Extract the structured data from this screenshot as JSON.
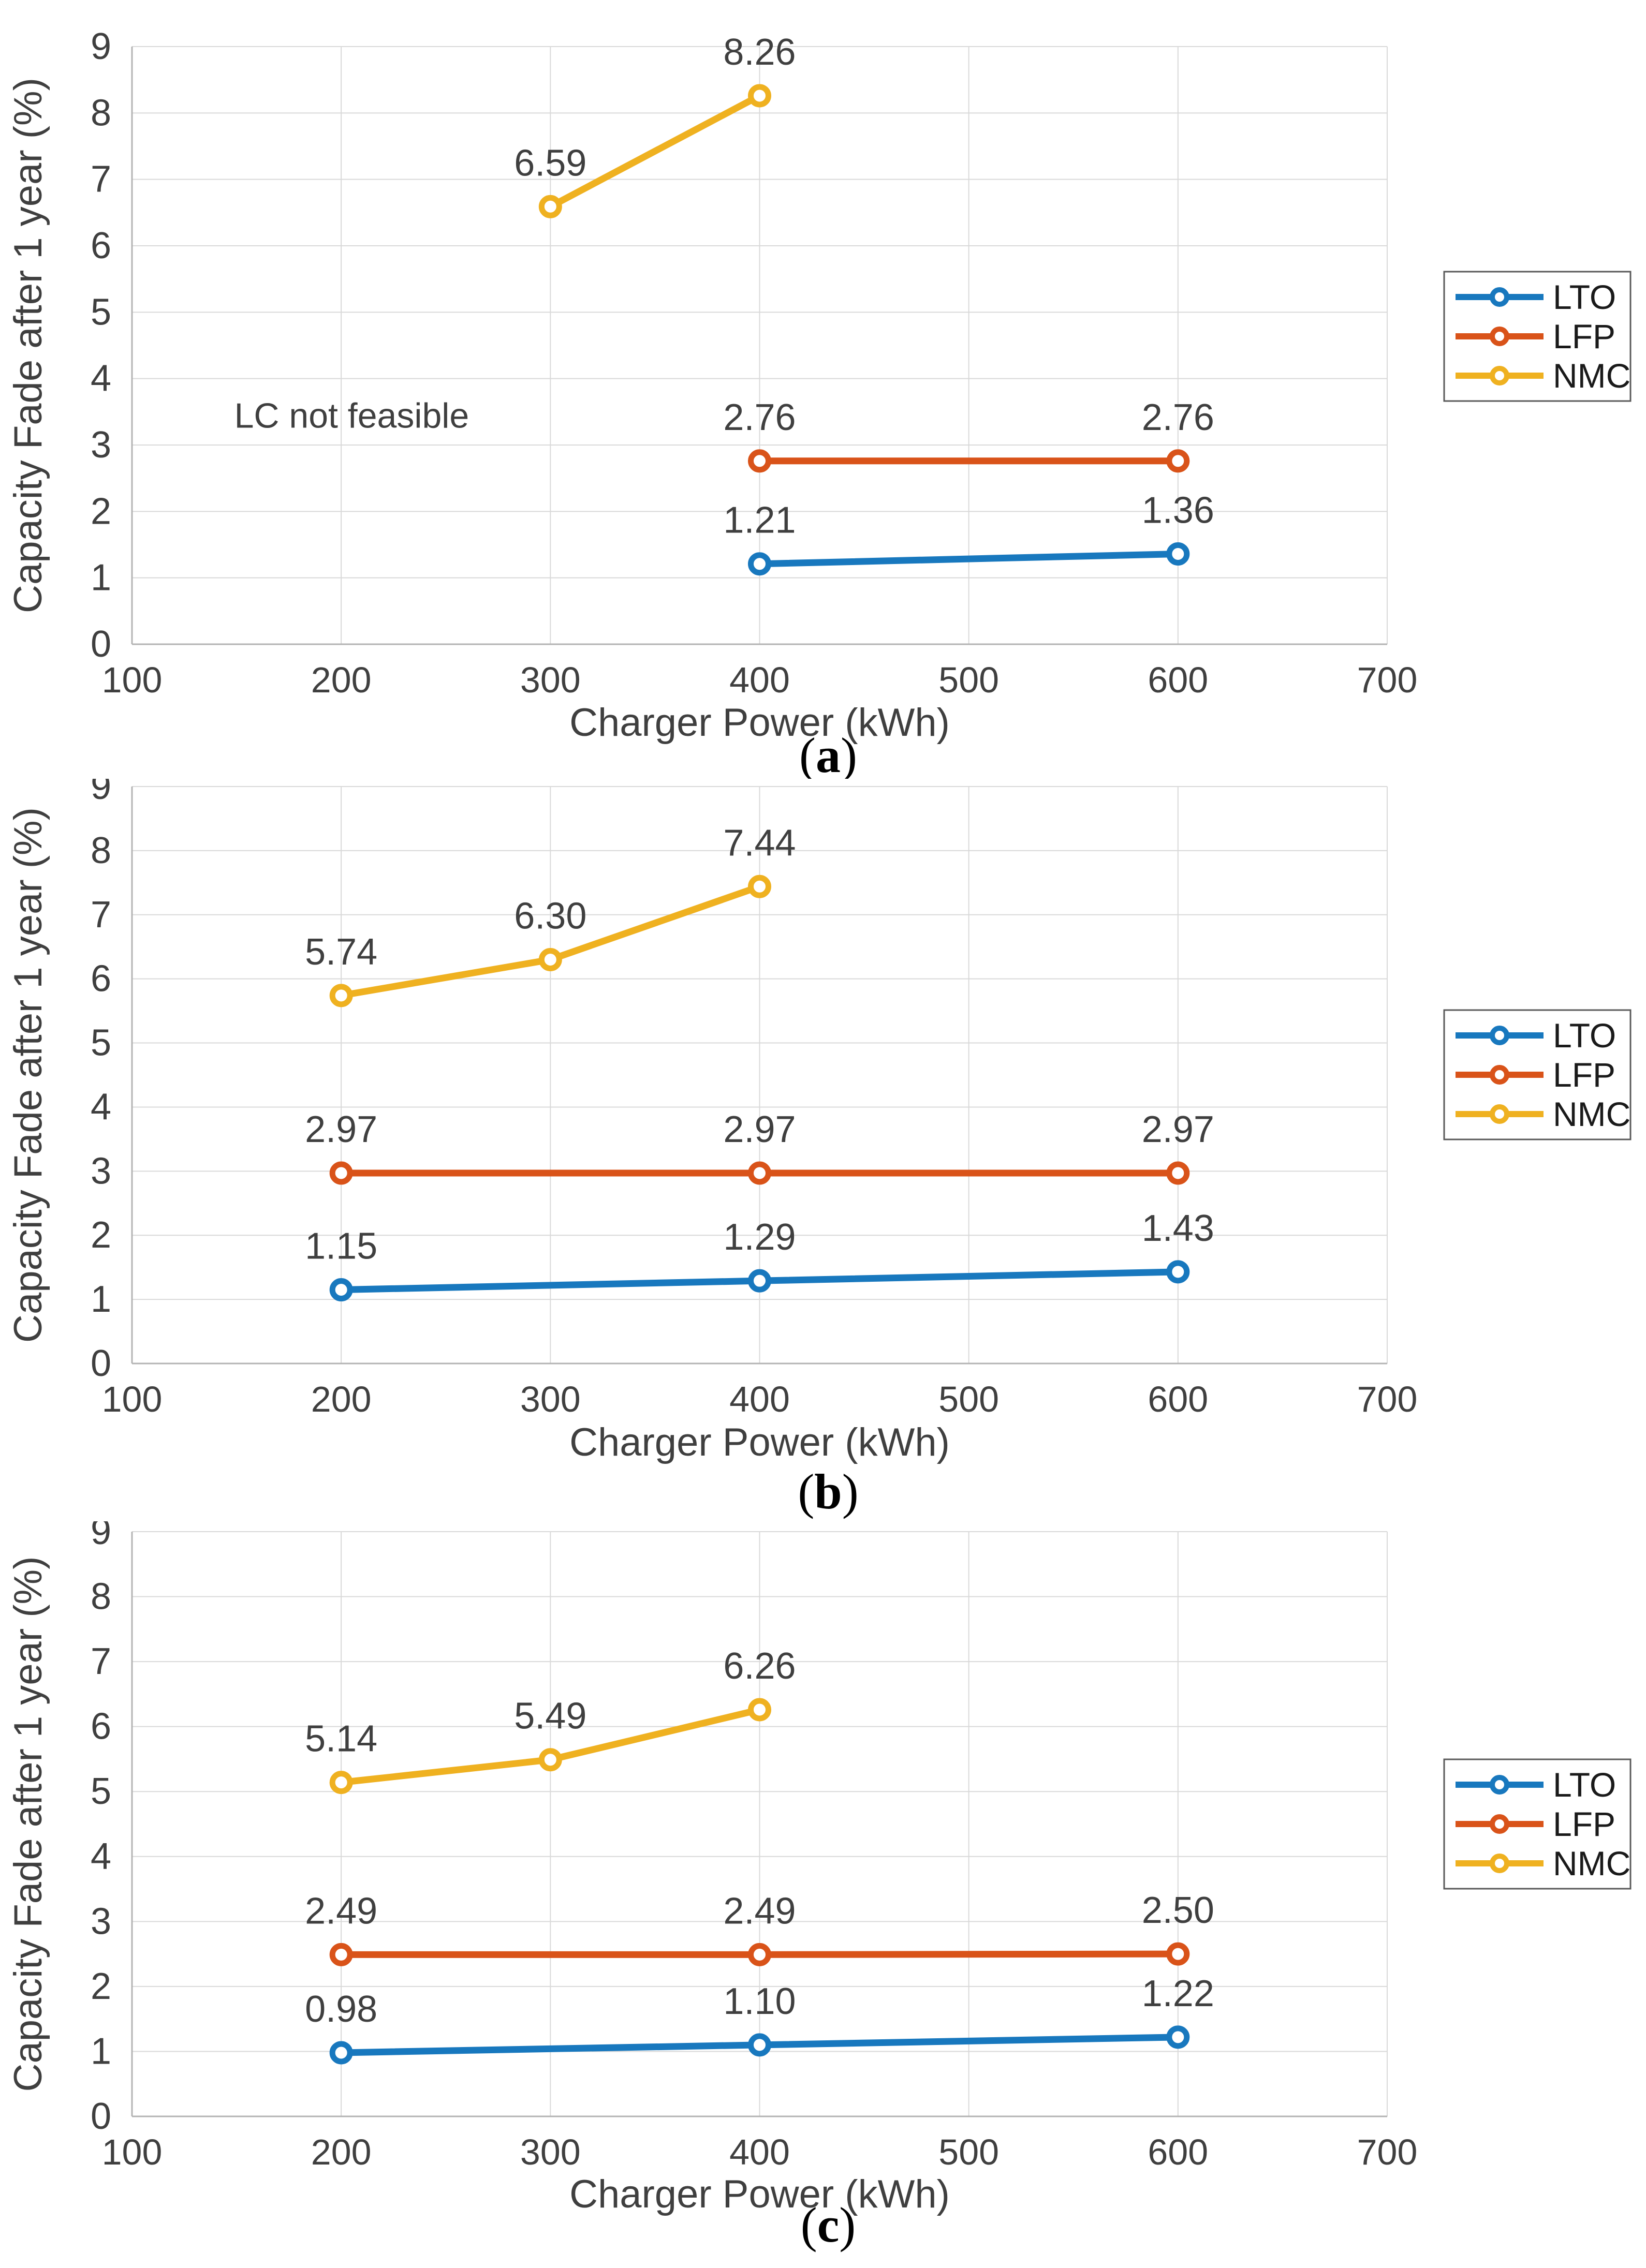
{
  "figure": {
    "xlabel": "Charger Power (kWh)",
    "ylabel": "Capacity Fade after 1 year (%)",
    "x_ticks": [
      100,
      200,
      300,
      400,
      500,
      600,
      700
    ],
    "y_ticks": [
      0,
      1,
      2,
      3,
      4,
      5,
      6,
      7,
      8,
      9
    ],
    "x_range": [
      100,
      700
    ],
    "y_range": [
      0,
      9
    ]
  },
  "legend": {
    "position": "right-center",
    "items": [
      "LTO",
      "LFP",
      "NMC"
    ]
  },
  "colors": {
    "LTO": "#1878be",
    "LFP": "#d95319",
    "NMC": "#efb120",
    "grid": "#d9d9d9",
    "axis": "#b3b3b3",
    "tick_text": "#3f3f3f",
    "label_text": "#3f3f3f",
    "annotation_text": "#3f3f3f",
    "caption_text": "#000000",
    "legend_border": "#595959",
    "background": "#ffffff"
  },
  "chart_data": [
    {
      "type": "line",
      "caption": "(a)",
      "caption_letter": "a",
      "xlabel": "Charger Power (kWh)",
      "ylabel": "Capacity Fade after 1 year (%)",
      "xlim": [
        100,
        700
      ],
      "ylim": [
        0,
        9
      ],
      "grid": true,
      "legend_position": "right-center",
      "annotation": {
        "text": "LC not feasible",
        "x": 205,
        "y": 3.45
      },
      "series": [
        {
          "name": "LTO",
          "points": [
            {
              "x": 400,
              "y": 1.21,
              "label": "1.21"
            },
            {
              "x": 600,
              "y": 1.36,
              "label": "1.36"
            }
          ]
        },
        {
          "name": "LFP",
          "points": [
            {
              "x": 400,
              "y": 2.76,
              "label": "2.76"
            },
            {
              "x": 600,
              "y": 2.76,
              "label": "2.76"
            }
          ]
        },
        {
          "name": "NMC",
          "points": [
            {
              "x": 300,
              "y": 6.59,
              "label": "6.59"
            },
            {
              "x": 400,
              "y": 8.26,
              "label": "8.26"
            }
          ]
        }
      ]
    },
    {
      "type": "line",
      "caption": "(b)",
      "caption_letter": "b",
      "xlabel": "Charger Power (kWh)",
      "ylabel": "Capacity Fade after 1 year (%)",
      "xlim": [
        100,
        700
      ],
      "ylim": [
        0,
        9
      ],
      "grid": true,
      "legend_position": "right-center",
      "annotation": null,
      "series": [
        {
          "name": "LTO",
          "points": [
            {
              "x": 200,
              "y": 1.15,
              "label": "1.15"
            },
            {
              "x": 400,
              "y": 1.29,
              "label": "1.29"
            },
            {
              "x": 600,
              "y": 1.43,
              "label": "1.43"
            }
          ]
        },
        {
          "name": "LFP",
          "points": [
            {
              "x": 200,
              "y": 2.97,
              "label": "2.97"
            },
            {
              "x": 400,
              "y": 2.97,
              "label": "2.97"
            },
            {
              "x": 600,
              "y": 2.97,
              "label": "2.97"
            }
          ]
        },
        {
          "name": "NMC",
          "points": [
            {
              "x": 200,
              "y": 5.74,
              "label": "5.74"
            },
            {
              "x": 300,
              "y": 6.3,
              "label": "6.30"
            },
            {
              "x": 400,
              "y": 7.44,
              "label": "7.44"
            }
          ]
        }
      ]
    },
    {
      "type": "line",
      "caption": "(c)",
      "caption_letter": "c",
      "xlabel": "Charger Power (kWh)",
      "ylabel": "Capacity Fade after 1 year (%)",
      "xlim": [
        100,
        700
      ],
      "ylim": [
        0,
        9
      ],
      "grid": true,
      "legend_position": "right-center",
      "annotation": null,
      "series": [
        {
          "name": "LTO",
          "points": [
            {
              "x": 200,
              "y": 0.98,
              "label": "0.98"
            },
            {
              "x": 400,
              "y": 1.1,
              "label": "1.10"
            },
            {
              "x": 600,
              "y": 1.22,
              "label": "1.22"
            }
          ]
        },
        {
          "name": "LFP",
          "points": [
            {
              "x": 200,
              "y": 2.49,
              "label": "2.49"
            },
            {
              "x": 400,
              "y": 2.49,
              "label": "2.49"
            },
            {
              "x": 600,
              "y": 2.5,
              "label": "2.50"
            }
          ]
        },
        {
          "name": "NMC",
          "points": [
            {
              "x": 200,
              "y": 5.14,
              "label": "5.14"
            },
            {
              "x": 300,
              "y": 5.49,
              "label": "5.49"
            },
            {
              "x": 400,
              "y": 6.26,
              "label": "6.26"
            }
          ]
        }
      ]
    }
  ]
}
